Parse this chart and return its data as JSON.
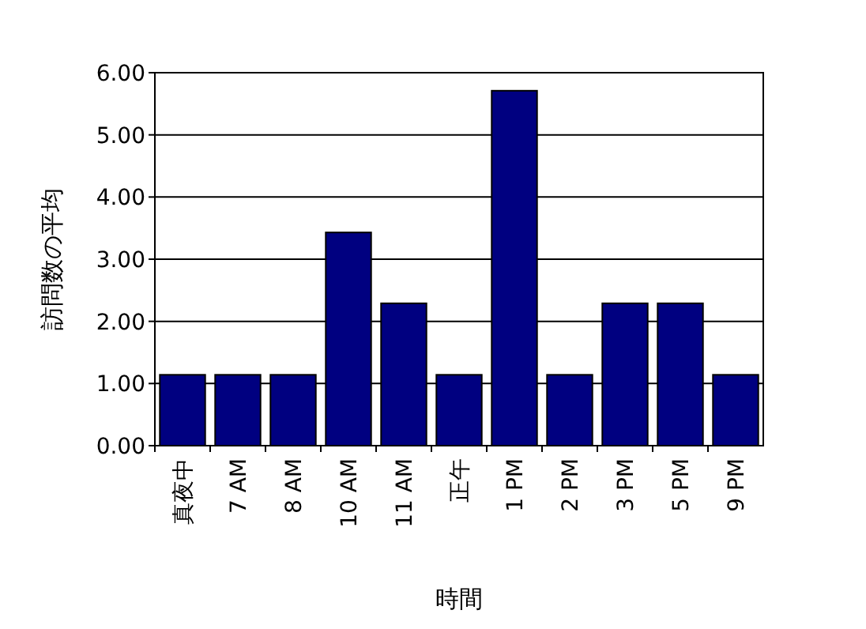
{
  "chart_data": {
    "type": "bar",
    "xlabel": "時間",
    "ylabel": "訪問数の平均",
    "categories": [
      "真夜中",
      "7 AM",
      "8 AM",
      "10 AM",
      "11 AM",
      "正午",
      "1 PM",
      "2 PM",
      "3 PM",
      "5 PM",
      "9 PM"
    ],
    "values": [
      1.14,
      1.14,
      1.14,
      3.43,
      2.29,
      1.14,
      5.71,
      1.14,
      2.29,
      2.29,
      1.14
    ],
    "color": "#000080",
    "ylim": [
      0,
      6
    ],
    "yticks": [
      {
        "value": 0,
        "label": "0.00"
      },
      {
        "value": 1,
        "label": "1.00"
      },
      {
        "value": 2,
        "label": "2.00"
      },
      {
        "value": 3,
        "label": "3.00"
      },
      {
        "value": 4,
        "label": "4.00"
      },
      {
        "value": 5,
        "label": "5.00"
      },
      {
        "value": 6,
        "label": "6.00"
      }
    ],
    "grid": "y"
  }
}
